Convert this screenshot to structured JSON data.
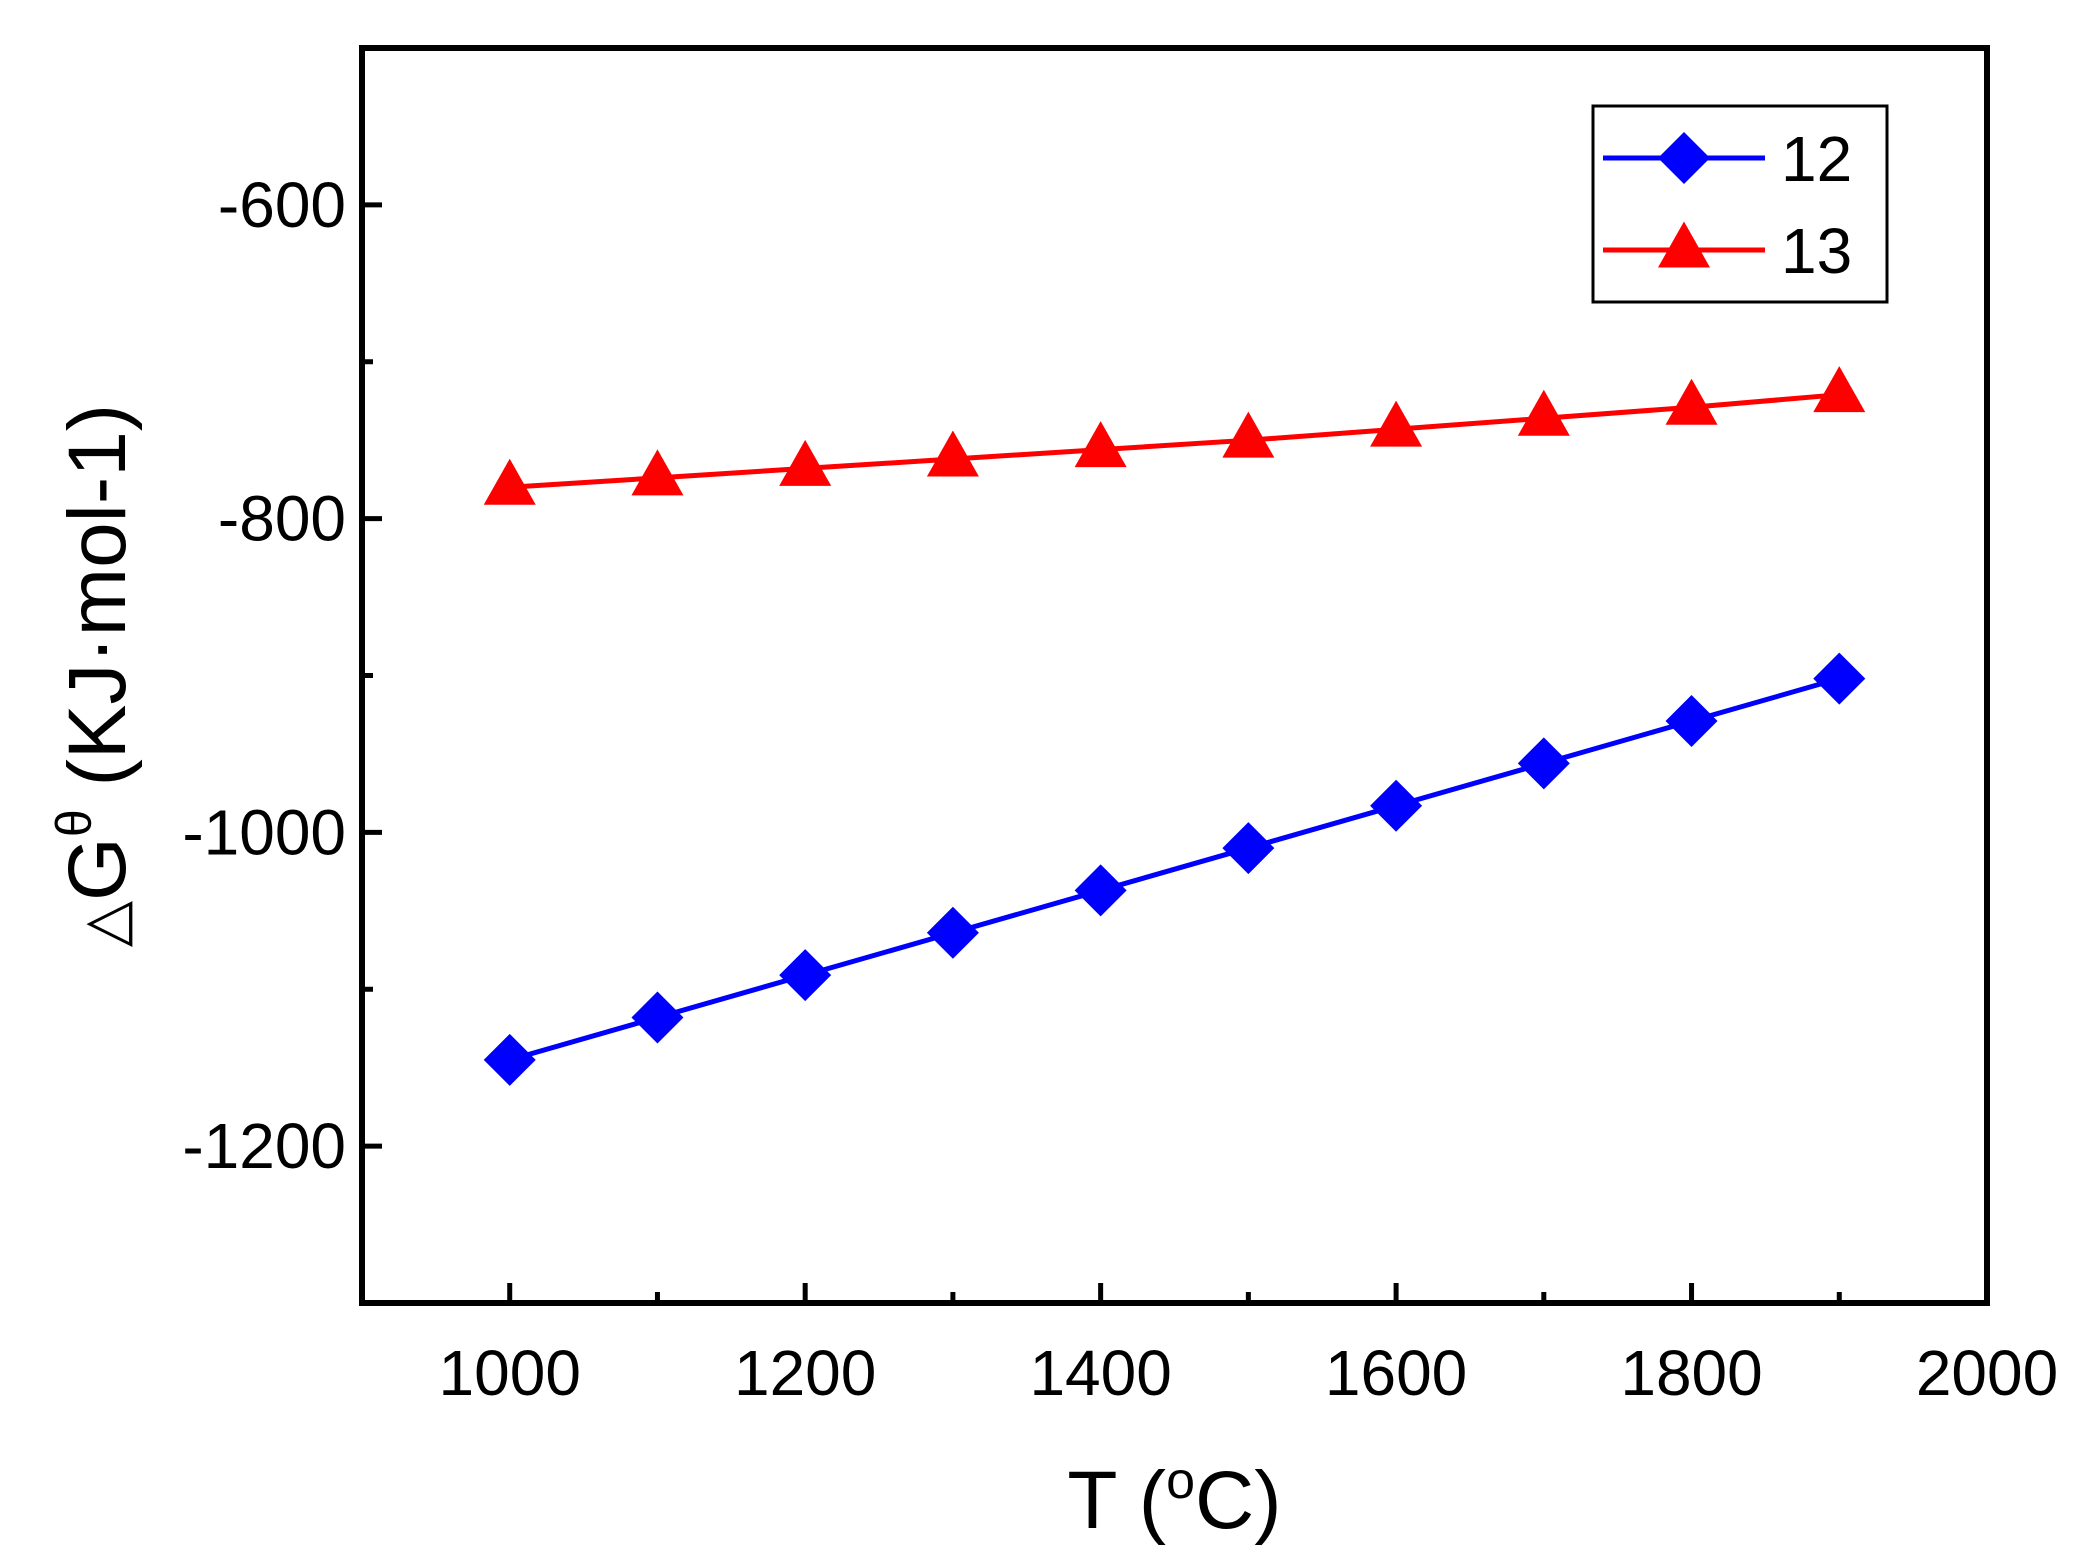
{
  "chart_data": {
    "type": "line",
    "title": "",
    "xlabel": "T (°C)",
    "ylabel": "ΔG(KJ·mol-1)",
    "xlabel_parts": {
      "main": "T (",
      "sup": "o",
      "unit": "C)"
    },
    "ylabel_parts": {
      "delta": "△",
      "main": "G",
      "sup": "θ",
      "unit": " (KJ·mol-1)"
    },
    "xlim": [
      900,
      2000
    ],
    "ylim": [
      -1300,
      -500
    ],
    "xticks_major": [
      1000,
      1200,
      1400,
      1600,
      1800,
      2000
    ],
    "xtick_labels": [
      "1000",
      "1200",
      "1400",
      "1600",
      "1800",
      "2000"
    ],
    "xticks_minor": [
      900,
      1100,
      1300,
      1500,
      1700,
      1900
    ],
    "yticks_major": [
      -1200,
      -1000,
      -800,
      -600
    ],
    "ytick_labels": [
      "-1200",
      "-1000",
      "-800",
      "-600"
    ],
    "yticks_minor": [
      -1300,
      -1100,
      -900,
      -700,
      -500
    ],
    "grid": false,
    "legend_position": "top-right",
    "x": [
      1000,
      1100,
      1200,
      1300,
      1400,
      1500,
      1600,
      1700,
      1800,
      1900
    ],
    "series": [
      {
        "name": "12",
        "color": "#0000ff",
        "marker": "diamond",
        "values": [
          -1145,
          -1118,
          -1091,
          -1064,
          -1037,
          -1010,
          -983,
          -956,
          -929,
          -902
        ]
      },
      {
        "name": "13",
        "color": "#ff0000",
        "marker": "triangle",
        "values": [
          -780,
          -774,
          -768,
          -762,
          -756,
          -750,
          -743,
          -736,
          -729,
          -721
        ]
      }
    ]
  }
}
